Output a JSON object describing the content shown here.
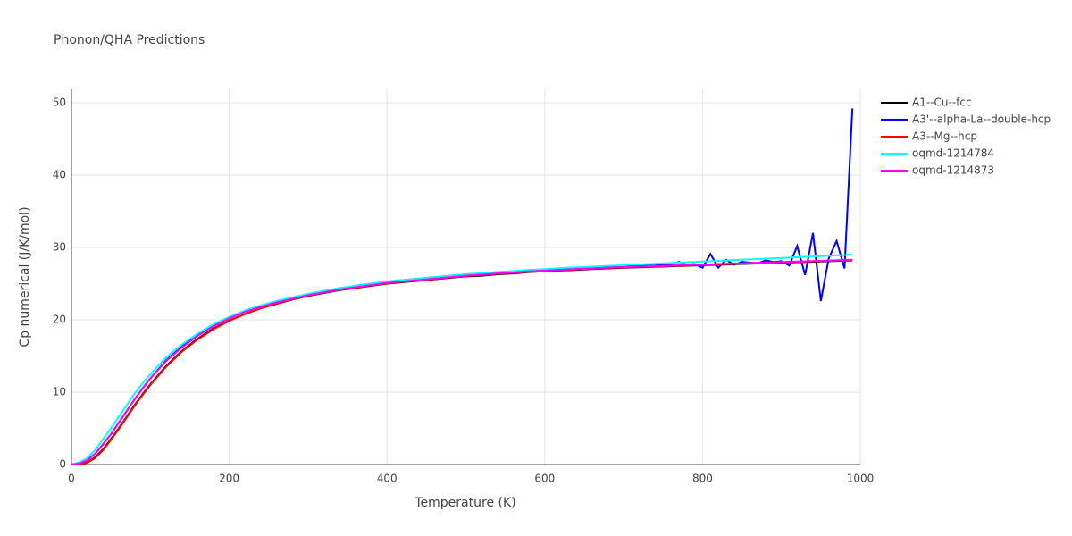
{
  "chart_data": {
    "type": "line",
    "title": "Phonon/QHA Predictions",
    "x_label": "Temperature (K)",
    "y_label": "Cp numerical (J/K/mol)",
    "xlim": [
      0,
      1000
    ],
    "ylim": [
      0,
      51.85
    ],
    "xticks": [
      0,
      200,
      400,
      600,
      800,
      1000
    ],
    "yticks": [
      0,
      10,
      20,
      30,
      40,
      50
    ],
    "grid": true,
    "legend": "right",
    "x": [
      0,
      10,
      20,
      30,
      40,
      50,
      60,
      70,
      80,
      90,
      100,
      120,
      140,
      160,
      180,
      200,
      220,
      240,
      260,
      280,
      300,
      320,
      340,
      360,
      380,
      400,
      420,
      440,
      460,
      480,
      500,
      520,
      540,
      560,
      580,
      600,
      620,
      640,
      660,
      680,
      690,
      700,
      710,
      720,
      730,
      740,
      750,
      760,
      770,
      780,
      790,
      800,
      810,
      820,
      830,
      840,
      850,
      860,
      870,
      880,
      890,
      900,
      910,
      920,
      930,
      940,
      950,
      960,
      970,
      980,
      990
    ],
    "series": [
      {
        "name": "A1--Cu--fcc",
        "color": "#000000",
        "values": [
          0,
          0.05,
          0.3,
          1.0,
          2.1,
          3.5,
          5.0,
          6.6,
          8.2,
          9.7,
          11.1,
          13.6,
          15.7,
          17.4,
          18.8,
          19.9,
          20.8,
          21.6,
          22.2,
          22.8,
          23.3,
          23.7,
          24.1,
          24.4,
          24.7,
          25.0,
          25.2,
          25.4,
          25.6,
          25.8,
          26.0,
          26.1,
          26.3,
          26.4,
          26.6,
          26.7,
          26.8,
          26.9,
          27.0,
          27.1,
          27.15,
          27.19,
          27.22,
          27.26,
          27.29,
          27.33,
          27.36,
          27.4,
          27.43,
          27.47,
          27.5,
          27.54,
          27.57,
          27.61,
          27.64,
          27.68,
          27.71,
          27.75,
          27.78,
          27.82,
          27.85,
          27.89,
          27.92,
          27.96,
          27.99,
          28.03,
          28.06,
          28.1,
          28.13,
          28.17,
          28.2
        ]
      },
      {
        "name": "A3'--alpha-La--double-hcp",
        "color": "#0000ff",
        "values": [
          0,
          0.15,
          0.6,
          1.5,
          2.8,
          4.2,
          5.8,
          7.4,
          9.0,
          10.5,
          11.9,
          14.4,
          16.3,
          17.9,
          19.2,
          20.3,
          21.2,
          21.9,
          22.5,
          23.0,
          23.5,
          23.9,
          24.3,
          24.7,
          25.0,
          25.3,
          25.5,
          25.7,
          25.9,
          26.1,
          26.3,
          26.4,
          26.6,
          26.7,
          26.85,
          26.95,
          27.05,
          27.15,
          27.25,
          27.3,
          27.35,
          27.6,
          27.4,
          27.6,
          27.45,
          27.5,
          27.7,
          27.55,
          28.0,
          27.6,
          27.7,
          27.2,
          29.1,
          27.2,
          28.3,
          27.6,
          28.0,
          27.9,
          27.8,
          28.2,
          28.0,
          28.1,
          27.5,
          30.2,
          26.2,
          32.0,
          22.6,
          28.5,
          30.9,
          27.1,
          49.2
        ]
      },
      {
        "name": "A3--Mg--hcp",
        "color": "#ff0000",
        "values": [
          0,
          0.03,
          0.25,
          0.9,
          2.0,
          3.4,
          4.9,
          6.5,
          8.1,
          9.6,
          11.0,
          13.5,
          15.6,
          17.3,
          18.7,
          19.85,
          20.8,
          21.6,
          22.25,
          22.85,
          23.35,
          23.75,
          24.15,
          24.45,
          24.75,
          25.05,
          25.25,
          25.45,
          25.65,
          25.85,
          26.05,
          26.2,
          26.35,
          26.5,
          26.65,
          26.75,
          26.85,
          26.95,
          27.05,
          27.15,
          27.2,
          27.24,
          27.27,
          27.31,
          27.34,
          27.38,
          27.41,
          27.45,
          27.48,
          27.52,
          27.55,
          27.59,
          27.62,
          27.66,
          27.69,
          27.73,
          27.76,
          27.8,
          27.83,
          27.87,
          27.9,
          27.94,
          27.97,
          28.01,
          28.04,
          28.08,
          28.11,
          28.15,
          28.18,
          28.22,
          28.25
        ]
      },
      {
        "name": "oqmd-1214784",
        "color": "#00ffff",
        "values": [
          0,
          0.3,
          0.9,
          2.0,
          3.5,
          5.0,
          6.6,
          8.2,
          9.8,
          11.2,
          12.5,
          14.8,
          16.6,
          18.1,
          19.4,
          20.4,
          21.3,
          22.0,
          22.6,
          23.1,
          23.6,
          24.0,
          24.4,
          24.7,
          25.0,
          25.3,
          25.5,
          25.7,
          25.9,
          26.1,
          26.3,
          26.45,
          26.6,
          26.75,
          26.9,
          27.0,
          27.15,
          27.25,
          27.35,
          27.45,
          27.5,
          27.55,
          27.6,
          27.65,
          27.7,
          27.75,
          27.8,
          27.85,
          27.9,
          27.95,
          28.0,
          28.05,
          28.1,
          28.15,
          28.2,
          28.25,
          28.3,
          28.35,
          28.4,
          28.45,
          28.5,
          28.55,
          28.6,
          28.65,
          28.7,
          28.75,
          28.8,
          28.85,
          28.9,
          28.95,
          29.0
        ]
      },
      {
        "name": "oqmd-1214873",
        "color": "#ff00ff",
        "values": [
          0,
          0.15,
          0.6,
          1.5,
          2.8,
          4.2,
          5.8,
          7.4,
          9.0,
          10.5,
          11.9,
          14.3,
          16.2,
          17.8,
          19.1,
          20.2,
          21.1,
          21.8,
          22.4,
          22.9,
          23.4,
          23.8,
          24.2,
          24.5,
          24.8,
          25.1,
          25.3,
          25.5,
          25.7,
          25.9,
          26.1,
          26.25,
          26.4,
          26.55,
          26.7,
          26.8,
          26.9,
          27.0,
          27.1,
          27.2,
          27.25,
          27.29,
          27.32,
          27.36,
          27.39,
          27.43,
          27.46,
          27.5,
          27.53,
          27.57,
          27.6,
          27.64,
          27.67,
          27.71,
          27.74,
          27.78,
          27.81,
          27.85,
          27.88,
          27.92,
          27.95,
          27.99,
          28.02,
          28.06,
          28.09,
          28.13,
          28.16,
          28.2,
          28.23,
          28.27,
          28.3
        ]
      }
    ]
  }
}
